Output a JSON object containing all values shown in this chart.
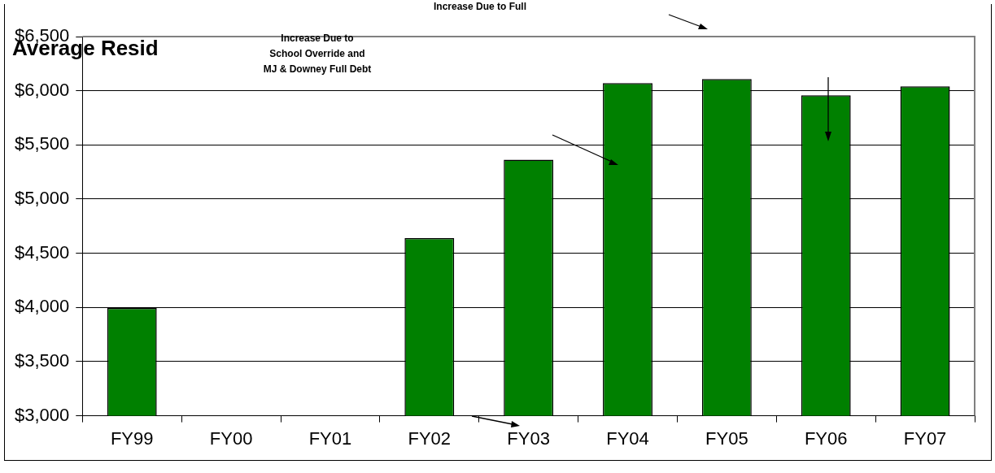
{
  "chart_data": {
    "type": "bar",
    "title": "Average Resid",
    "categories": [
      "FY99",
      "FY00",
      "FY01",
      "FY02",
      "FY03",
      "FY04",
      "FY05",
      "FY06",
      "FY07"
    ],
    "values": [
      3995,
      null,
      null,
      4640,
      5363,
      6071,
      6108,
      5958,
      6041
    ],
    "color": "#008000",
    "ylim": [
      3000,
      6500
    ],
    "yticks": [
      {
        "value": 3000,
        "label": "$3,000"
      },
      {
        "value": 3500,
        "label": "$3,500"
      },
      {
        "value": 4000,
        "label": "$4,000"
      },
      {
        "value": 4500,
        "label": "$4,500"
      },
      {
        "value": 5000,
        "label": "$5,000"
      },
      {
        "value": 5500,
        "label": "$5,500"
      },
      {
        "value": 6000,
        "label": "$6,000"
      },
      {
        "value": 6500,
        "label": "$6,500"
      }
    ],
    "grid": "y",
    "legend": false,
    "annotations": [
      "Increase Due to\nSchool Override and\nMJ & Downey Full Debt",
      "Increase Due to Full"
    ]
  }
}
